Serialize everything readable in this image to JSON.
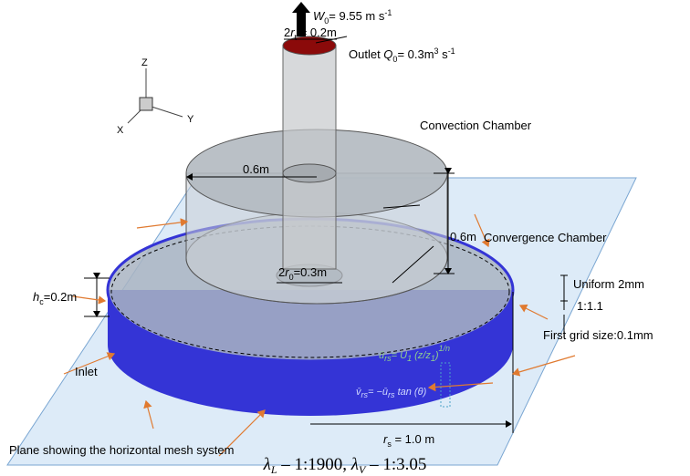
{
  "outlet_velocity": {
    "symbol": "W",
    "subscript": "0",
    "value": "= 9.55 m s",
    "exponent": "-1"
  },
  "outlet_diameter": {
    "prefix": "2",
    "symbol": "r",
    "subscript": "t",
    "value": " = 0.2m"
  },
  "outlet_flow": {
    "label": "Outlet ",
    "symbol": "Q",
    "subscript": "0",
    "value": "= 0.3m",
    "exp1": "3",
    "unit": " s",
    "exp2": "-1"
  },
  "axes": {
    "z": "Z",
    "x": "X",
    "y": "Y"
  },
  "convection_chamber": "Convection Chamber",
  "convection_radius": "0.6m",
  "convection_height": "0.6m",
  "convergence_chamber": "Convergence Chamber",
  "inner_diameter": {
    "prefix": "2",
    "symbol": "r",
    "subscript": "0",
    "value": "=0.3m"
  },
  "inlet_height": {
    "symbol": "h",
    "subscript": "c",
    "value": "=0.2m"
  },
  "mesh": {
    "uniform": "Uniform 2mm",
    "ratio": "1:1.1",
    "first": "First grid size:0.1mm"
  },
  "inlet": "Inlet",
  "radial_velocity": {
    "lhs": "ū",
    "lhs_sub": "rs",
    "rhs": "= U",
    "rhs_sub": "1",
    "ratio": " (z/z",
    "ratio_sub": "1",
    "close": ")",
    "exponent": "1/n"
  },
  "tangential_velocity": {
    "lhs": "v̄",
    "lhs_sub": "rs",
    "rhs": "= −ū",
    "rhs_sub": "rs",
    "tail": " tan (θ)"
  },
  "plane": "Plane showing the horizontal mesh system",
  "outer_radius": {
    "symbol": "r",
    "subscript": "s",
    "value": " = 1.0 m"
  },
  "caption": {
    "l": "λ",
    "l_sub": "L",
    "l_val": " – 1:1900, ",
    "v": "λ",
    "v_sub": "V",
    "v_val": " – 1:3.05"
  }
}
